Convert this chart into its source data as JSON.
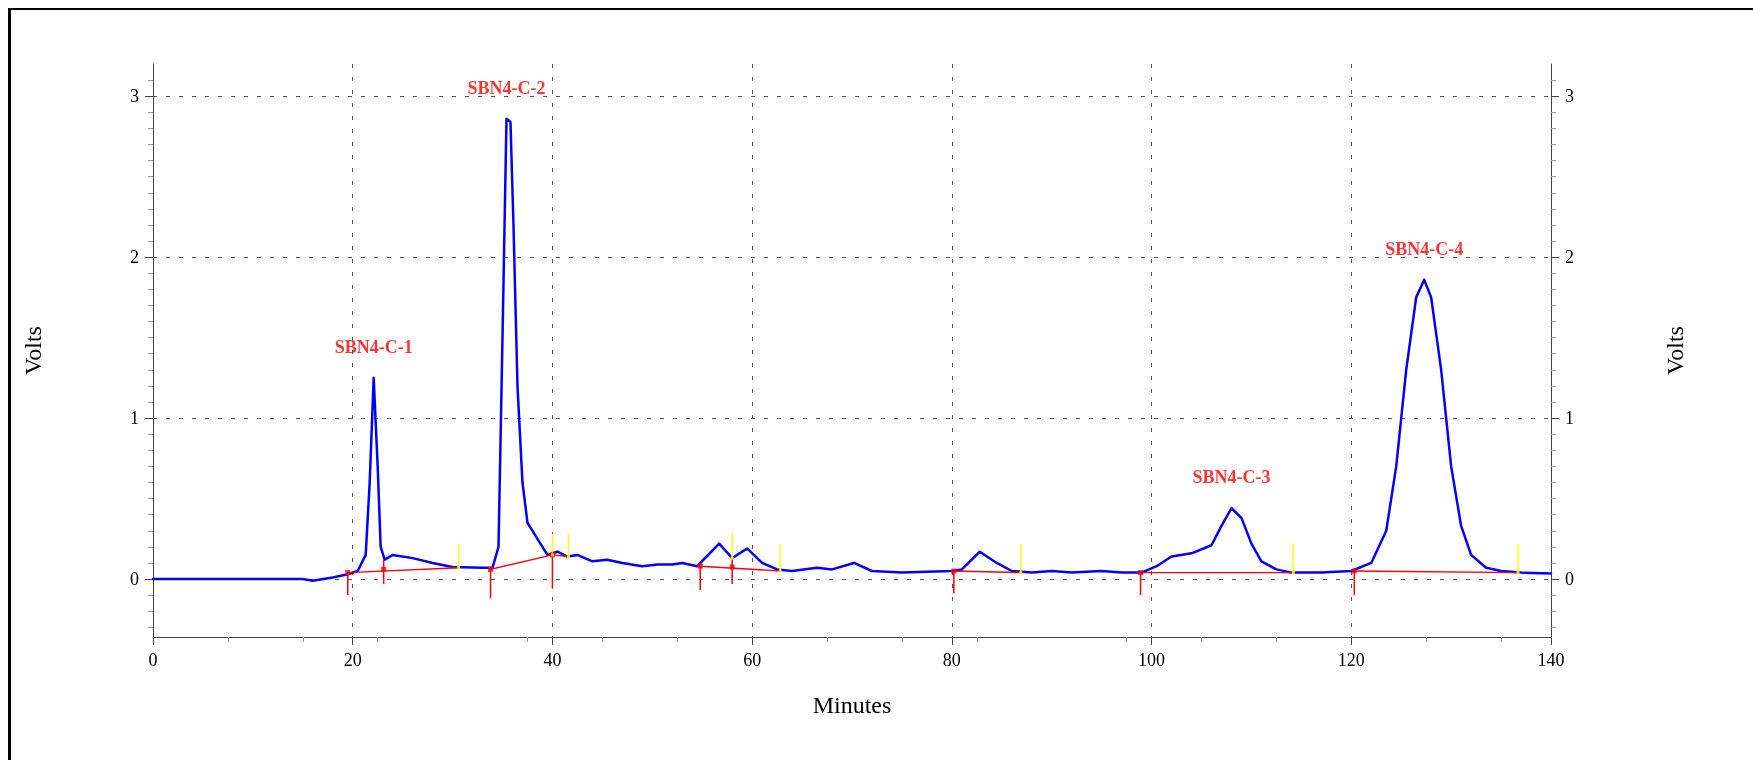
{
  "chart_data": {
    "type": "line",
    "xlabel": "Minutes",
    "ylabel": "Volts",
    "y2label": "Volts",
    "xlim": [
      0,
      140
    ],
    "xticks": [
      0,
      20,
      40,
      60,
      80,
      100,
      120,
      140
    ],
    "ylim": [
      -0.36,
      3.2
    ],
    "yticks": [
      0,
      1,
      2,
      3
    ],
    "y2lim": [
      -0.36,
      3.2
    ],
    "y2ticks": [
      0,
      1,
      2,
      3
    ],
    "grid": true,
    "line_style": "solid",
    "annotations": [
      {
        "text": "SBN4-C-1",
        "x": 22.1,
        "y": 1.25
      },
      {
        "text": "SBN4-C-2",
        "x": 35.4,
        "y": 2.86
      },
      {
        "text": "SBN4-C-3",
        "x": 108,
        "y": 0.44
      },
      {
        "text": "SBN4-C-4",
        "x": 127.3,
        "y": 1.86
      }
    ],
    "series": [
      {
        "color": "#0000ff",
        "x": [
          0,
          15,
          16,
          18,
          19.5,
          20.5,
          21.3,
          21.7,
          22.1,
          22.5,
          22.8,
          23.2,
          24,
          26,
          28,
          30,
          33,
          34,
          34.6,
          35,
          35.4,
          35.8,
          36.1,
          36.5,
          37,
          37.5,
          38.5,
          39.5,
          40.5,
          41.5,
          42.5,
          44,
          45.5,
          47,
          49,
          50.5,
          52,
          53,
          54.5,
          56.7,
          58,
          59.5,
          61,
          62.5,
          64,
          66.5,
          68,
          70.2,
          72,
          75,
          80,
          81,
          82.8,
          84.5,
          86,
          88,
          90,
          92,
          95,
          97,
          99,
          100.5,
          102,
          104,
          106,
          107,
          108,
          109,
          110,
          111,
          112.5,
          114,
          117,
          120,
          122,
          123.5,
          124.5,
          125.5,
          126.5,
          127.3,
          128,
          129,
          130,
          131,
          132,
          133.5,
          135,
          137,
          140
        ],
        "values": [
          0,
          0,
          -0.01,
          0.01,
          0.03,
          0.05,
          0.15,
          0.6,
          1.25,
          0.7,
          0.2,
          0.12,
          0.15,
          0.13,
          0.1,
          0.075,
          0.07,
          0.07,
          0.2,
          1.5,
          2.86,
          2.84,
          2.2,
          1.2,
          0.6,
          0.35,
          0.25,
          0.15,
          0.17,
          0.14,
          0.15,
          0.11,
          0.12,
          0.1,
          0.08,
          0.09,
          0.09,
          0.1,
          0.08,
          0.22,
          0.13,
          0.19,
          0.1,
          0.06,
          0.05,
          0.07,
          0.06,
          0.1,
          0.05,
          0.04,
          0.05,
          0.06,
          0.17,
          0.1,
          0.05,
          0.04,
          0.05,
          0.04,
          0.05,
          0.04,
          0.04,
          0.08,
          0.14,
          0.16,
          0.21,
          0.33,
          0.44,
          0.38,
          0.22,
          0.11,
          0.06,
          0.04,
          0.04,
          0.05,
          0.1,
          0.3,
          0.7,
          1.3,
          1.75,
          1.86,
          1.75,
          1.3,
          0.7,
          0.33,
          0.15,
          0.07,
          0.05,
          0.04,
          0.035
        ]
      },
      {
        "color": "#ff0000",
        "x": [
          19.5,
          30.6,
          32,
          33.8,
          40,
          41.6,
          48,
          54.8,
          62.8,
          70,
          80.2,
          86.9,
          92,
          98.9,
          114.2,
          117,
          120.3,
          136.7
        ],
        "values": [
          0.04,
          0.07,
          null,
          0.06,
          0.15,
          0.14,
          null,
          0.08,
          0.05,
          null,
          0.05,
          0.04,
          null,
          0.04,
          0.04,
          null,
          0.05,
          0.04
        ]
      },
      {
        "type": "scatter",
        "color": "#ff0000",
        "x": [
          19.5,
          23.1,
          33.8,
          40,
          54.8,
          58,
          80.2,
          98.9,
          120.3
        ],
        "values": [
          0.04,
          0.06,
          0.06,
          0.15,
          0.08,
          0.075,
          0.05,
          0.04,
          0.05
        ],
        "errors": [
          [
            -0.1,
            0.04
          ],
          [
            -0.03,
            0.12
          ],
          [
            -0.12,
            0.06
          ],
          [
            -0.06,
            0.15
          ],
          [
            -0.07,
            0.08
          ],
          [
            -0.03,
            0.13
          ],
          [
            -0.09,
            0.05
          ],
          [
            -0.1,
            0.04
          ],
          [
            -0.1,
            0.05
          ]
        ]
      },
      {
        "type": "scatter",
        "color": "#ffff00",
        "x": [
          30.6,
          40,
          41.6,
          58,
          62.8,
          86.9,
          114.2,
          136.7
        ],
        "values": [
          0.07,
          0.15,
          0.14,
          0.13,
          0.05,
          0.04,
          0.04,
          0.04
        ],
        "errors": [
          [
            0.07,
            0.22
          ],
          [
            0.15,
            0.28
          ],
          [
            0.14,
            0.28
          ],
          [
            0.13,
            0.29
          ],
          [
            0.05,
            0.22
          ],
          [
            0.04,
            0.22
          ],
          [
            0.04,
            0.22
          ],
          [
            0.04,
            0.22
          ]
        ]
      }
    ]
  }
}
